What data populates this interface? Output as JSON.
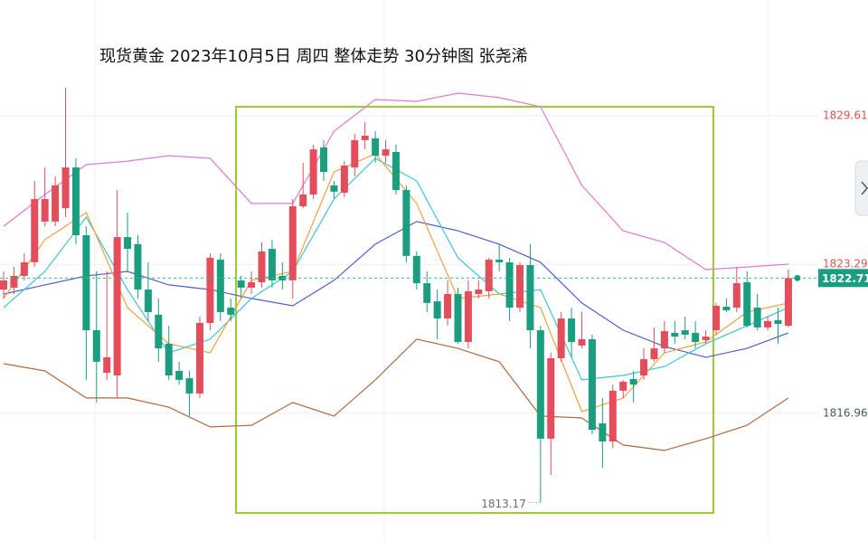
{
  "chart_data": {
    "type": "candlestick",
    "title": "现货黄金  2023年10月5日 周四 整体走势 30分钟图  张尧浠",
    "ylim": [
      1811.53,
      1834.53
    ],
    "yticks": [
      1829.61,
      1823.29,
      1816.96
    ],
    "grid": true,
    "up_color": "#e34d5c",
    "down_color": "#1b9e80",
    "candles": {
      "open": [
        1822.22,
        1822.3,
        1822.8,
        1823.38,
        1825.11,
        1825.11,
        1825.68,
        1827.41,
        1824.53,
        1820.49,
        1818.68,
        1818.57,
        1824.45,
        1824.15,
        1822.22,
        1821.15,
        1819.92,
        1818.76,
        1818.45,
        1817.8,
        1820.8,
        1823.49,
        1821.45,
        1822.61,
        1822.3,
        1822.53,
        1823.95,
        1822.8,
        1822.61,
        1825.76,
        1826.26,
        1828.26,
        1826.65,
        1826.34,
        1827.41,
        1828.57,
        1828.65,
        1827.91,
        1828.07,
        1826.45,
        1823.65,
        1822.49,
        1821.72,
        1820.99,
        1822.03,
        1819.99,
        1822.03,
        1822.15,
        1823.49,
        1823.38,
        1821.45,
        1823.26,
        1820.49,
        1815.88,
        1819.3,
        1820.99,
        1819.84,
        1820.11,
        1816.53,
        1815.76,
        1817.92,
        1818.42,
        1818.57,
        1819.26,
        1819.72,
        1820.38,
        1820.49,
        1820.38,
        1820.07,
        1820.49,
        1821.49,
        1821.45,
        1822.53,
        1821.45,
        1820.61,
        1820.92,
        1820.68
      ],
      "high": [
        1822.99,
        1823.18,
        1823.76,
        1826.84,
        1827.41,
        1827.03,
        1830.8,
        1827.8,
        1824.91,
        1822.99,
        1822.99,
        1826.45,
        1825.49,
        1824.53,
        1823.38,
        1821.84,
        1820.68,
        1819.15,
        1818.76,
        1821.07,
        1823.76,
        1823.76,
        1821.84,
        1822.8,
        1822.99,
        1824.22,
        1824.34,
        1823.38,
        1826.07,
        1827.61,
        1828.38,
        1828.57,
        1826.84,
        1827.68,
        1828.84,
        1829.34,
        1828.95,
        1828.57,
        1828.38,
        1826.65,
        1823.84,
        1822.99,
        1822.22,
        1822.61,
        1822.3,
        1822.61,
        1822.61,
        1823.57,
        1824.15,
        1823.57,
        1823.38,
        1824.15,
        1820.68,
        1819.53,
        1821.26,
        1821.45,
        1821.26,
        1820.3,
        1817.61,
        1818.18,
        1818.38,
        1818.76,
        1819.72,
        1820.61,
        1820.88,
        1820.88,
        1821.07,
        1820.88,
        1820.49,
        1821.65,
        1821.84,
        1823.18,
        1822.99,
        1822.03,
        1821.07,
        1821.45,
        1823.07
      ],
      "low": [
        1821.84,
        1822.03,
        1822.61,
        1823.18,
        1824.91,
        1824.91,
        1825.3,
        1824.15,
        1818.38,
        1817.42,
        1818.38,
        1817.61,
        1822.99,
        1821.84,
        1820.88,
        1819.15,
        1818.38,
        1818.18,
        1816.84,
        1817.61,
        1820.49,
        1820.88,
        1820.88,
        1821.84,
        1822.03,
        1822.3,
        1822.3,
        1822.22,
        1821.84,
        1825.68,
        1826.07,
        1826.84,
        1826.07,
        1826.15,
        1827.03,
        1828.18,
        1827.61,
        1827.61,
        1826.26,
        1823.38,
        1822.22,
        1821.26,
        1820.11,
        1820.68,
        1819.92,
        1819.72,
        1821.84,
        1821.84,
        1822.99,
        1820.88,
        1821.26,
        1819.72,
        1813.17,
        1814.34,
        1819.15,
        1819.34,
        1819.72,
        1816.07,
        1814.65,
        1815.49,
        1817.61,
        1817.42,
        1818.38,
        1819.15,
        1819.53,
        1819.92,
        1820.11,
        1819.72,
        1819.92,
        1820.3,
        1821.26,
        1821.26,
        1820.61,
        1820.49,
        1820.49,
        1819.92,
        1820.61
      ],
      "close": [
        1822.61,
        1822.8,
        1823.38,
        1826.07,
        1826.07,
        1826.65,
        1827.41,
        1824.53,
        1820.49,
        1819.15,
        1819.34,
        1824.45,
        1823.95,
        1822.22,
        1821.26,
        1819.72,
        1818.57,
        1818.38,
        1817.8,
        1820.8,
        1823.57,
        1821.26,
        1821.15,
        1822.3,
        1822.53,
        1823.84,
        1822.61,
        1822.61,
        1825.76,
        1826.26,
        1828.18,
        1827.22,
        1826.38,
        1827.49,
        1828.57,
        1828.76,
        1827.91,
        1828.18,
        1826.45,
        1823.65,
        1822.49,
        1821.65,
        1820.99,
        1822.03,
        1819.99,
        1822.15,
        1822.22,
        1823.49,
        1823.38,
        1821.45,
        1823.26,
        1820.49,
        1815.88,
        1819.3,
        1820.99,
        1819.99,
        1820.11,
        1816.26,
        1815.76,
        1817.92,
        1818.3,
        1818.18,
        1819.26,
        1819.72,
        1820.45,
        1820.22,
        1820.3,
        1819.99,
        1820.22,
        1821.53,
        1821.34,
        1822.49,
        1820.68,
        1820.61,
        1820.88,
        1820.76,
        1822.71
      ]
    },
    "series": [
      {
        "color": "#e07ad0",
        "x": [
          0,
          4,
          8,
          12,
          16,
          20,
          24,
          28,
          32,
          36,
          40,
          44,
          48,
          52,
          56,
          60,
          64,
          68,
          72,
          76
        ],
        "values": [
          1824.91,
          1826.26,
          1827.53,
          1827.68,
          1827.91,
          1827.8,
          1825.88,
          1825.88,
          1828.95,
          1830.3,
          1830.22,
          1830.57,
          1830.38,
          1829.99,
          1826.65,
          1824.72,
          1824.22,
          1823.07,
          1823.18,
          1823.3
        ]
      },
      {
        "color": "#b06a3e",
        "x": [
          0,
          4,
          8,
          12,
          16,
          20,
          24,
          28,
          32,
          36,
          40,
          44,
          48,
          52,
          56,
          60,
          64,
          68,
          72,
          76
        ],
        "values": [
          1819.07,
          1818.76,
          1817.61,
          1817.61,
          1817.22,
          1816.38,
          1816.45,
          1817.42,
          1816.84,
          1818.38,
          1820.11,
          1819.72,
          1819.15,
          1816.84,
          1816.76,
          1815.61,
          1815.38,
          1815.88,
          1816.45,
          1817.61
        ]
      },
      {
        "color": "#5060c8",
        "x": [
          0,
          4,
          8,
          12,
          16,
          20,
          24,
          28,
          32,
          36,
          40,
          44,
          48,
          52,
          56,
          60,
          64,
          68,
          72,
          76
        ],
        "values": [
          1822.03,
          1822.42,
          1822.8,
          1822.99,
          1822.42,
          1822.22,
          1821.84,
          1821.53,
          1822.61,
          1824.15,
          1825.11,
          1824.72,
          1824.15,
          1823.38,
          1821.65,
          1820.49,
          1819.8,
          1819.34,
          1819.72,
          1820.38
        ]
      },
      {
        "color": "#3cc4d8",
        "x": [
          0,
          4,
          8,
          12,
          16,
          20,
          24,
          28,
          32,
          36,
          40,
          44,
          48,
          52,
          56,
          60,
          64,
          68,
          72,
          76
        ],
        "values": [
          1821.45,
          1822.99,
          1825.3,
          1822.22,
          1819.53,
          1820.11,
          1821.84,
          1822.99,
          1826.07,
          1827.8,
          1826.84,
          1823.57,
          1822.03,
          1822.22,
          1818.38,
          1818.57,
          1818.95,
          1819.92,
          1820.68,
          1821.45
        ]
      },
      {
        "color": "#f0a040",
        "x": [
          0,
          4,
          8,
          12,
          16,
          20,
          24,
          28,
          32,
          36,
          40,
          44,
          48,
          52,
          56,
          60,
          64,
          68,
          72,
          76
        ],
        "values": [
          1821.84,
          1824.34,
          1825.49,
          1821.45,
          1819.92,
          1819.53,
          1822.61,
          1822.99,
          1827.22,
          1827.99,
          1825.88,
          1821.84,
          1822.03,
          1821.45,
          1817.03,
          1817.61,
          1819.53,
          1819.99,
          1821.26,
          1821.65
        ]
      }
    ]
  }
}
